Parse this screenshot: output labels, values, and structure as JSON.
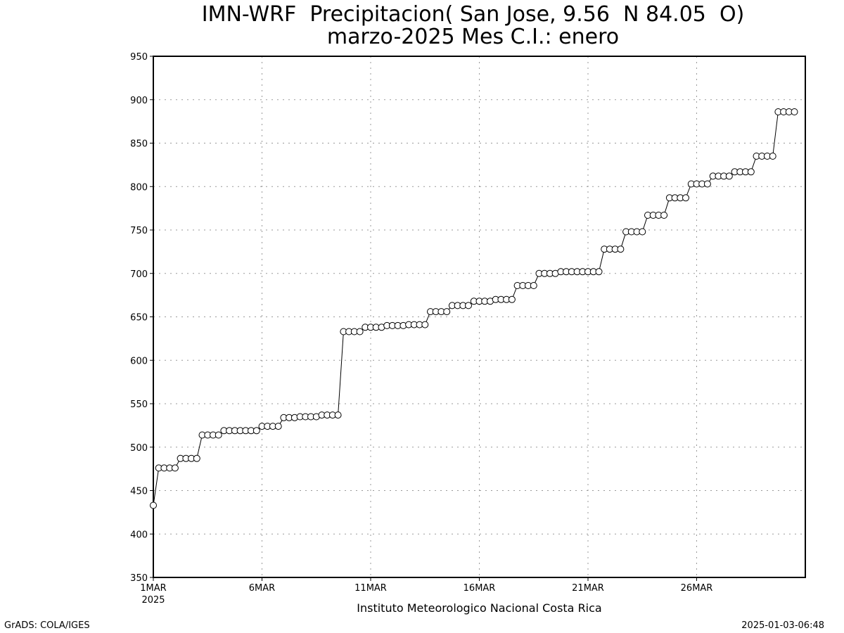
{
  "title_line1": "IMN-WRF  Precipitacion( San Jose, 9.56  N 84.05  O)",
  "title_line2": "marzo-2025 Mes C.I.: enero",
  "footer_left": "GrADS: COLA/IGES",
  "footer_right": "2025-01-03-06:48",
  "chart_data": {
    "type": "line",
    "title": "IMN-WRF  Precipitacion( San Jose, 9.56  N 84.05  O)",
    "subtitle": "marzo-2025 Mes C.I.: enero",
    "xlabel": "Instituto Meteorologico Nacional Costa Rica",
    "ylabel": "",
    "x_start_label": "2025",
    "xtick_labels": [
      "1MAR",
      "6MAR",
      "11MAR",
      "16MAR",
      "21MAR",
      "26MAR"
    ],
    "xtick_days": [
      1,
      6,
      11,
      16,
      21,
      26
    ],
    "xlim_days": [
      1,
      31
    ],
    "ylim": [
      350,
      950
    ],
    "yticks": [
      350,
      400,
      450,
      500,
      550,
      600,
      650,
      700,
      750,
      800,
      850,
      900,
      950
    ],
    "grid": true,
    "marker": "open-circle",
    "series": [
      {
        "time_step_hours": 6,
        "values": [
          433,
          476,
          476,
          476,
          476,
          487,
          487,
          487,
          487,
          514,
          514,
          514,
          514,
          519,
          519,
          519,
          519,
          519,
          519,
          519,
          524,
          524,
          524,
          524,
          534,
          534,
          534,
          535,
          535,
          535,
          535,
          537,
          537,
          537,
          537,
          633,
          633,
          633,
          633,
          638,
          638,
          638,
          638,
          640,
          640,
          640,
          640,
          641,
          641,
          641,
          641,
          656,
          656,
          656,
          656,
          663,
          663,
          663,
          663,
          668,
          668,
          668,
          668,
          670,
          670,
          670,
          670,
          686,
          686,
          686,
          686,
          700,
          700,
          700,
          700,
          702,
          702,
          702,
          702,
          702,
          702,
          702,
          702,
          728,
          728,
          728,
          728,
          748,
          748,
          748,
          748,
          767,
          767,
          767,
          767,
          787,
          787,
          787,
          787,
          803,
          803,
          803,
          803,
          812,
          812,
          812,
          812,
          817,
          817,
          817,
          817,
          835,
          835,
          835,
          835,
          886,
          886,
          886,
          886
        ]
      }
    ]
  }
}
